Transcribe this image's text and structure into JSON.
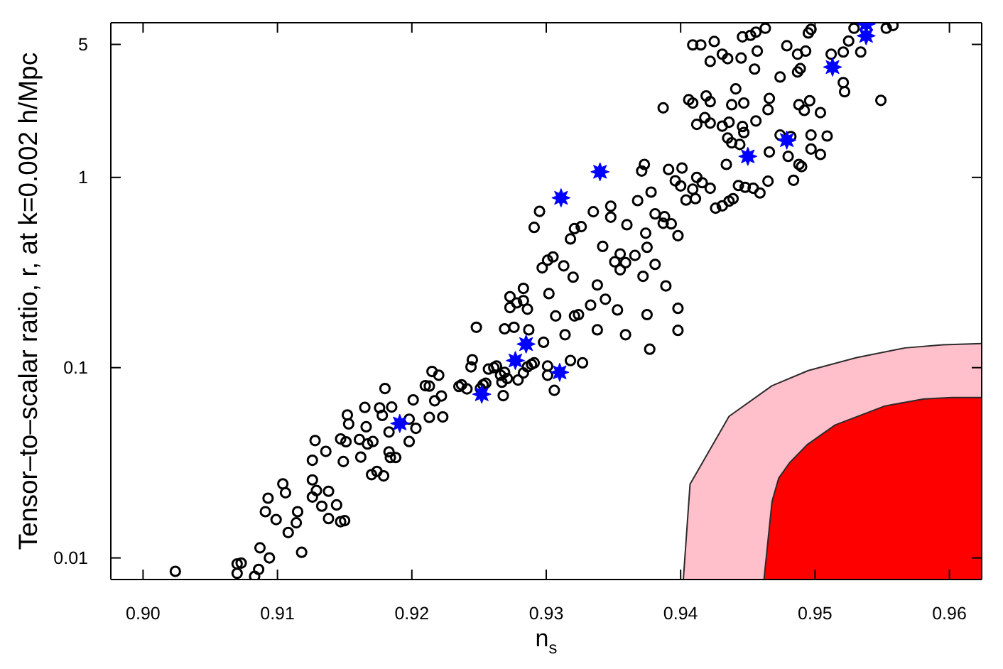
{
  "chart_data": {
    "type": "scatter",
    "xlabel": "n$_{s}$",
    "ylabel": "Tensor–to–scalar ratio, r, at k=0.002 h/Mpc",
    "log": "y",
    "xlim": [
      0.8976,
      0.9624
    ],
    "ylim": [
      0.0077,
      6.5
    ],
    "xticks": [
      {
        "value": 0.9,
        "label": "0.90"
      },
      0.91,
      0.92,
      0.93,
      0.94,
      0.95,
      0.96
    ],
    "yticks": [
      0.01,
      0.1,
      1,
      5
    ],
    "series": [
      {
        "type": "area",
        "color": "#ffc0cb",
        "x": [
          0.9402,
          0.9407,
          0.9436,
          0.9468,
          0.9495,
          0.9531,
          0.9567,
          0.9595,
          0.9624
        ],
        "values": [
          0.0077,
          0.0244,
          0.0555,
          0.0804,
          0.0966,
          0.113,
          0.127,
          0.132,
          0.134
        ]
      },
      {
        "type": "area",
        "color": "#ff0000",
        "x": [
          0.9462,
          0.9468,
          0.9473,
          0.9481,
          0.9494,
          0.9515,
          0.9552,
          0.9581,
          0.9602,
          0.9624
        ],
        "values": [
          0.0077,
          0.0198,
          0.0263,
          0.0316,
          0.0393,
          0.05,
          0.0629,
          0.0685,
          0.0697,
          0.0697
        ]
      },
      {
        "marker": "circle",
        "color": "#000000",
        "x": [
          0.9024,
          0.907,
          0.9073,
          0.907,
          0.9083,
          0.9086,
          0.9087,
          0.9094,
          0.9118,
          0.9108,
          0.9099,
          0.9091,
          0.9093,
          0.9104,
          0.9106,
          0.9115,
          0.9114,
          0.9126,
          0.9126,
          0.9129,
          0.9133,
          0.9138,
          0.9138,
          0.9144,
          0.9147,
          0.915,
          0.9126,
          0.9128,
          0.9136,
          0.9149,
          0.9147,
          0.9151,
          0.9152,
          0.9153,
          0.9161,
          0.9162,
          0.9165,
          0.9166,
          0.9167,
          0.9171,
          0.917,
          0.9174,
          0.9179,
          0.9176,
          0.9178,
          0.918,
          0.9183,
          0.9183,
          0.9184,
          0.9188,
          0.9185,
          0.9198,
          0.9198,
          0.9201,
          0.9203,
          0.921,
          0.9215,
          0.922,
          0.9213,
          0.9217,
          0.9222,
          0.9223,
          0.9213,
          0.9235,
          0.9237,
          0.9241,
          0.9245,
          0.9244,
          0.9248,
          0.9253,
          0.9251,
          0.9255,
          0.9257,
          0.9261,
          0.9263,
          0.9266,
          0.9269,
          0.9267,
          0.9268,
          0.9271,
          0.9279,
          0.9283,
          0.9286,
          0.9289,
          0.9291,
          0.9269,
          0.9276,
          0.9287,
          0.9298,
          0.9301,
          0.9301,
          0.9306,
          0.9318,
          0.9327,
          0.9314,
          0.9321,
          0.9324,
          0.9307,
          0.9302,
          0.9273,
          0.9273,
          0.9278,
          0.9283,
          0.9286,
          0.9283,
          0.9338,
          0.9333,
          0.9344,
          0.9338,
          0.9353,
          0.9359,
          0.9377,
          0.9375,
          0.9389,
          0.9372,
          0.9381,
          0.9355,
          0.9351,
          0.9355,
          0.9359,
          0.9366,
          0.9375,
          0.9374,
          0.9342,
          0.932,
          0.9313,
          0.9297,
          0.9301,
          0.9305,
          0.9291,
          0.9295,
          0.9318,
          0.9321,
          0.9326,
          0.9335,
          0.9348,
          0.9348,
          0.936,
          0.9368,
          0.9378,
          0.9381,
          0.9387,
          0.9393,
          0.9398,
          0.9391,
          0.9371,
          0.9373,
          0.9396,
          0.9398,
          0.9398,
          0.9409,
          0.9415,
          0.9422,
          0.9425,
          0.9431,
          0.9435,
          0.9446,
          0.9452,
          0.9456,
          0.9463,
          0.9445,
          0.9457,
          0.9455,
          0.9479,
          0.9487,
          0.9493,
          0.9487,
          0.9489,
          0.9474,
          0.9495,
          0.9497,
          0.9512,
          0.9521,
          0.9525,
          0.9529,
          0.9534,
          0.9521,
          0.9522,
          0.9549,
          0.9553,
          0.9558,
          0.9387,
          0.9406,
          0.9409,
          0.9419,
          0.9422,
          0.9441,
          0.9438,
          0.9447,
          0.9466,
          0.9465,
          0.9488,
          0.9492,
          0.9496,
          0.9504,
          0.9418,
          0.9422,
          0.9431,
          0.9436,
          0.9412,
          0.9446,
          0.9447,
          0.9456,
          0.9435,
          0.9438,
          0.9444,
          0.9434,
          0.9466,
          0.9474,
          0.9482,
          0.9497,
          0.9509,
          0.948,
          0.9488,
          0.949,
          0.9497,
          0.9504,
          0.9484,
          0.9465,
          0.9443,
          0.9448,
          0.9454,
          0.9459,
          0.9401,
          0.94,
          0.9412,
          0.9409,
          0.9416,
          0.9422,
          0.9404,
          0.9411,
          0.9426,
          0.9431,
          0.9436,
          0.9439,
          0.9388
        ],
        "values": [
          0.0085,
          0.0093,
          0.0094,
          0.0083,
          0.008,
          0.0087,
          0.0113,
          0.01,
          0.0107,
          0.0136,
          0.0159,
          0.0175,
          0.0206,
          0.0245,
          0.022,
          0.0175,
          0.0153,
          0.0257,
          0.0209,
          0.0226,
          0.0187,
          0.0224,
          0.0161,
          0.019,
          0.0155,
          0.0157,
          0.0326,
          0.0414,
          0.0363,
          0.0321,
          0.0422,
          0.0408,
          0.0564,
          0.0506,
          0.0419,
          0.0339,
          0.0618,
          0.0489,
          0.0397,
          0.0409,
          0.0274,
          0.0285,
          0.027,
          0.0615,
          0.0561,
          0.0777,
          0.0459,
          0.0361,
          0.0337,
          0.0337,
          0.0621,
          0.0409,
          0.0536,
          0.0677,
          0.048,
          0.0804,
          0.0955,
          0.0913,
          0.08,
          0.067,
          0.071,
          0.0551,
          0.0548,
          0.0796,
          0.0813,
          0.0773,
          0.11,
          0.101,
          0.163,
          0.0813,
          0.0777,
          0.0828,
          0.0983,
          0.1,
          0.102,
          0.0913,
          0.0945,
          0.0838,
          0.0713,
          0.0877,
          0.0861,
          0.0938,
          0.101,
          0.104,
          0.106,
          0.16,
          0.163,
          0.158,
          0.136,
          0.102,
          0.0913,
          0.076,
          0.109,
          0.106,
          0.149,
          0.187,
          0.19,
          0.187,
          0.245,
          0.236,
          0.207,
          0.219,
          0.225,
          0.203,
          0.261,
          0.158,
          0.213,
          0.229,
          0.272,
          0.201,
          0.149,
          0.125,
          0.19,
          0.269,
          0.302,
          0.349,
          0.327,
          0.36,
          0.396,
          0.356,
          0.389,
          0.429,
          0.509,
          0.434,
          0.299,
          0.343,
          0.335,
          0.367,
          0.382,
          0.546,
          0.663,
          0.475,
          0.538,
          0.551,
          0.66,
          0.706,
          0.618,
          0.564,
          0.755,
          0.837,
          0.643,
          0.574,
          0.57,
          0.494,
          1.1,
          1.08,
          1.17,
          0.96,
          0.157,
          0.205,
          4.97,
          4.97,
          4.07,
          5.18,
          4.44,
          4.21,
          5.48,
          5.58,
          5.8,
          6.08,
          4.24,
          4.61,
          3.71,
          4.92,
          4.44,
          4.61,
          3.58,
          3.73,
          3.37,
          5.74,
          6.0,
          4.44,
          4.56,
          5.21,
          6.08,
          4.56,
          3.15,
          2.82,
          2.54,
          6.08,
          6.29,
          2.32,
          2.56,
          2.46,
          2.68,
          2.5,
          2.92,
          2.41,
          2.46,
          2.6,
          2.27,
          2.41,
          2.25,
          2.53,
          2.19,
          2.06,
          1.93,
          1.86,
          1.95,
          1.9,
          1.85,
          1.72,
          1.98,
          1.61,
          1.52,
          1.49,
          1.17,
          1.36,
          1.67,
          1.64,
          1.67,
          1.65,
          1.29,
          1.17,
          1.14,
          1.41,
          1.32,
          0.966,
          0.955,
          0.906,
          0.887,
          0.877,
          0.828,
          1.12,
          0.902,
          1.0,
          0.867,
          0.938,
          0.877,
          0.76,
          0.773,
          0.689,
          0.709,
          0.75,
          0.773,
          0.621
        ]
      },
      {
        "marker": "star",
        "color": "#0000ff",
        "x": [
          0.9191,
          0.9252,
          0.9277,
          0.9285,
          0.931,
          0.9311,
          0.934,
          0.945,
          0.9479,
          0.9513,
          0.9538,
          0.9538
        ],
        "values": [
          0.0509,
          0.0725,
          0.109,
          0.133,
          0.0945,
          0.781,
          1.07,
          1.29,
          1.57,
          3.8,
          5.55,
          6.4
        ]
      }
    ]
  }
}
